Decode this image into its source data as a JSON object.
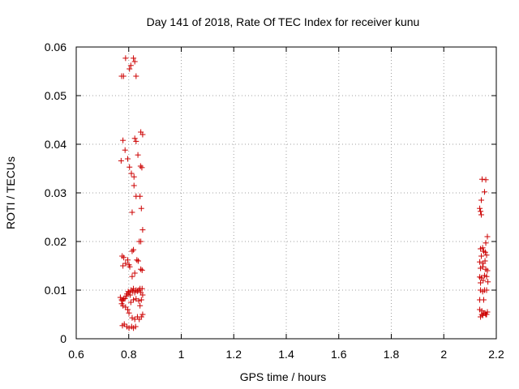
{
  "chart_data": {
    "type": "scatter",
    "title": "Day 141 of 2018, Rate Of TEC Index for receiver kunu",
    "xlabel": "GPS time / hours",
    "ylabel": "ROTI / TECUs",
    "xlim": [
      0.6,
      2.2
    ],
    "ylim": [
      0,
      0.06
    ],
    "xticks": [
      0.6,
      0.8,
      1,
      1.2,
      1.4,
      1.6,
      1.8,
      2,
      2.2
    ],
    "xtick_labels": [
      "0.6",
      "0.8",
      "1",
      "1.2",
      "1.4",
      "1.6",
      "1.8",
      "2",
      "2.2"
    ],
    "yticks": [
      0,
      0.01,
      0.02,
      0.03,
      0.04,
      0.05,
      0.06
    ],
    "ytick_labels": [
      "0",
      "0.01",
      "0.02",
      "0.03",
      "0.04",
      "0.05",
      "0.06"
    ],
    "grid": true,
    "marker": "+",
    "marker_color": "#cc0000",
    "series": [
      {
        "name": "ROTI",
        "points": [
          [
            0.773,
            0.054
          ],
          [
            0.78,
            0.054
          ],
          [
            0.788,
            0.0577
          ],
          [
            0.803,
            0.0555
          ],
          [
            0.808,
            0.0562
          ],
          [
            0.818,
            0.0577
          ],
          [
            0.823,
            0.057
          ],
          [
            0.828,
            0.054
          ],
          [
            0.778,
            0.0408
          ],
          [
            0.786,
            0.0388
          ],
          [
            0.771,
            0.0366
          ],
          [
            0.796,
            0.037
          ],
          [
            0.803,
            0.0353
          ],
          [
            0.81,
            0.034
          ],
          [
            0.82,
            0.0333
          ],
          [
            0.813,
            0.026
          ],
          [
            0.823,
            0.0412
          ],
          [
            0.828,
            0.0406
          ],
          [
            0.835,
            0.0378
          ],
          [
            0.82,
            0.0315
          ],
          [
            0.828,
            0.0293
          ],
          [
            0.843,
            0.0293
          ],
          [
            0.845,
            0.0355
          ],
          [
            0.85,
            0.0352
          ],
          [
            0.846,
            0.0425
          ],
          [
            0.853,
            0.042
          ],
          [
            0.848,
            0.0268
          ],
          [
            0.853,
            0.0224
          ],
          [
            0.84,
            0.02
          ],
          [
            0.846,
            0.02
          ],
          [
            0.775,
            0.017
          ],
          [
            0.781,
            0.0167
          ],
          [
            0.778,
            0.015
          ],
          [
            0.788,
            0.0155
          ],
          [
            0.796,
            0.0162
          ],
          [
            0.801,
            0.0152
          ],
          [
            0.804,
            0.0148
          ],
          [
            0.813,
            0.018
          ],
          [
            0.818,
            0.0183
          ],
          [
            0.813,
            0.0128
          ],
          [
            0.831,
            0.0162
          ],
          [
            0.836,
            0.016
          ],
          [
            0.846,
            0.0143
          ],
          [
            0.851,
            0.0141
          ],
          [
            0.823,
            0.0135
          ],
          [
            0.768,
            0.0085
          ],
          [
            0.773,
            0.008
          ],
          [
            0.776,
            0.0078
          ],
          [
            0.781,
            0.0082
          ],
          [
            0.786,
            0.0083
          ],
          [
            0.791,
            0.0088
          ],
          [
            0.793,
            0.0092
          ],
          [
            0.798,
            0.0097
          ],
          [
            0.801,
            0.0095
          ],
          [
            0.806,
            0.009
          ],
          [
            0.809,
            0.01
          ],
          [
            0.815,
            0.0098
          ],
          [
            0.818,
            0.0103
          ],
          [
            0.823,
            0.0095
          ],
          [
            0.828,
            0.01
          ],
          [
            0.833,
            0.0098
          ],
          [
            0.838,
            0.01
          ],
          [
            0.843,
            0.0103
          ],
          [
            0.846,
            0.0095
          ],
          [
            0.851,
            0.0103
          ],
          [
            0.853,
            0.009
          ],
          [
            0.773,
            0.0072
          ],
          [
            0.778,
            0.0068
          ],
          [
            0.788,
            0.0065
          ],
          [
            0.796,
            0.006
          ],
          [
            0.801,
            0.0053
          ],
          [
            0.808,
            0.0075
          ],
          [
            0.818,
            0.008
          ],
          [
            0.828,
            0.0082
          ],
          [
            0.838,
            0.0078
          ],
          [
            0.848,
            0.008
          ],
          [
            0.843,
            0.0068
          ],
          [
            0.813,
            0.0043
          ],
          [
            0.823,
            0.004
          ],
          [
            0.833,
            0.0045
          ],
          [
            0.84,
            0.004
          ],
          [
            0.848,
            0.0045
          ],
          [
            0.853,
            0.005
          ],
          [
            0.776,
            0.0027
          ],
          [
            0.783,
            0.003
          ],
          [
            0.793,
            0.0025
          ],
          [
            0.801,
            0.0022
          ],
          [
            0.811,
            0.0025
          ],
          [
            0.818,
            0.0022
          ],
          [
            0.826,
            0.0025
          ],
          [
            2.146,
            0.0328
          ],
          [
            2.16,
            0.0327
          ],
          [
            2.155,
            0.0302
          ],
          [
            2.143,
            0.0285
          ],
          [
            2.137,
            0.0268
          ],
          [
            2.14,
            0.0262
          ],
          [
            2.143,
            0.0255
          ],
          [
            2.166,
            0.021
          ],
          [
            2.16,
            0.0197
          ],
          [
            2.148,
            0.0187
          ],
          [
            2.14,
            0.0185
          ],
          [
            2.152,
            0.018
          ],
          [
            2.158,
            0.0178
          ],
          [
            2.143,
            0.017
          ],
          [
            2.163,
            0.0172
          ],
          [
            2.137,
            0.0158
          ],
          [
            2.15,
            0.0155
          ],
          [
            2.157,
            0.016
          ],
          [
            2.14,
            0.0145
          ],
          [
            2.148,
            0.0148
          ],
          [
            2.16,
            0.0143
          ],
          [
            2.166,
            0.014
          ],
          [
            2.137,
            0.0127
          ],
          [
            2.143,
            0.0125
          ],
          [
            2.15,
            0.012
          ],
          [
            2.155,
            0.013
          ],
          [
            2.163,
            0.0128
          ],
          [
            2.14,
            0.0115
          ],
          [
            2.168,
            0.0117
          ],
          [
            2.14,
            0.01
          ],
          [
            2.148,
            0.0097
          ],
          [
            2.155,
            0.01
          ],
          [
            2.163,
            0.01
          ],
          [
            2.137,
            0.008
          ],
          [
            2.152,
            0.008
          ],
          [
            2.137,
            0.006
          ],
          [
            2.145,
            0.0057
          ],
          [
            2.152,
            0.0053
          ],
          [
            2.16,
            0.005
          ],
          [
            2.166,
            0.0055
          ],
          [
            2.14,
            0.0045
          ],
          [
            2.148,
            0.0048
          ],
          [
            2.157,
            0.0053
          ],
          [
            2.163,
            0.005
          ],
          [
            2.145,
            0.005
          ]
        ]
      }
    ]
  }
}
